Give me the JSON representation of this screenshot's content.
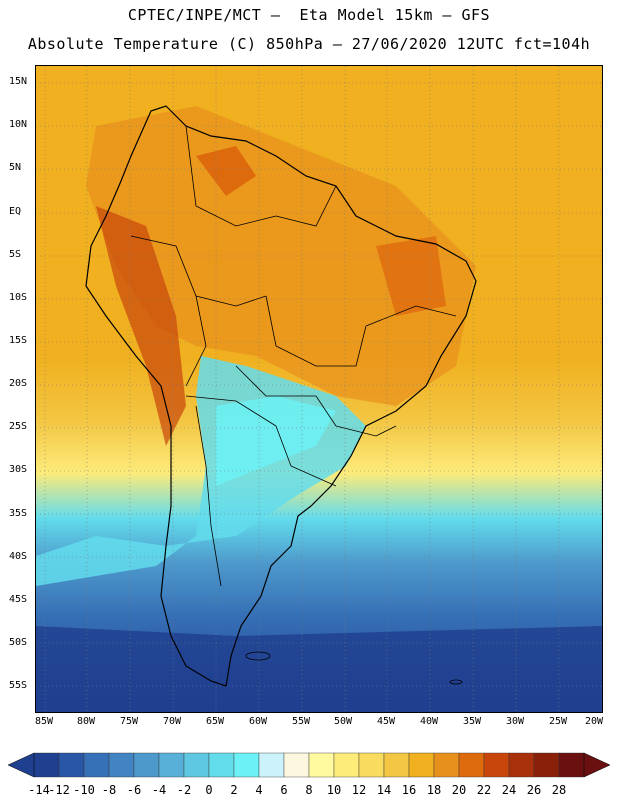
{
  "header": {
    "line1": "CPTEC/INPE/MCT –  Eta Model 15km – GFS",
    "line2": "Absolute Temperature (C) 850hPa – 27/06/2020 12UTC fct=104h"
  },
  "map": {
    "lat_ticks": [
      "15N",
      "10N",
      "5N",
      "EQ",
      "5S",
      "10S",
      "15S",
      "20S",
      "25S",
      "30S",
      "35S",
      "40S",
      "45S",
      "50S",
      "55S"
    ],
    "lon_ticks": [
      "85W",
      "80W",
      "75W",
      "70W",
      "65W",
      "60W",
      "55W",
      "50W",
      "45W",
      "40W",
      "35W",
      "30W",
      "25W",
      "20W"
    ],
    "lat_range": [
      16,
      -59
    ],
    "lon_range": [
      -86,
      -20
    ]
  },
  "colorbar": {
    "labels": [
      "-14",
      "-12",
      "-10",
      "-8",
      "-6",
      "-4",
      "-2",
      "0",
      "2",
      "4",
      "6",
      "8",
      "10",
      "12",
      "14",
      "16",
      "18",
      "20",
      "22",
      "24",
      "26",
      "28"
    ],
    "colors": [
      "#1f3f8f",
      "#2a56a6",
      "#3670b6",
      "#4283c1",
      "#4d99cc",
      "#58b0d8",
      "#5ec8e2",
      "#63dcec",
      "#6cf2f6",
      "#ccf2fb",
      "#fdf7e0",
      "#fffaa0",
      "#fdeb7a",
      "#f9dc5f",
      "#f3c643",
      "#f0b01f",
      "#e8901c",
      "#de6a0e",
      "#c8460c",
      "#a8300a",
      "#8b200a",
      "#6a1010"
    ]
  }
}
